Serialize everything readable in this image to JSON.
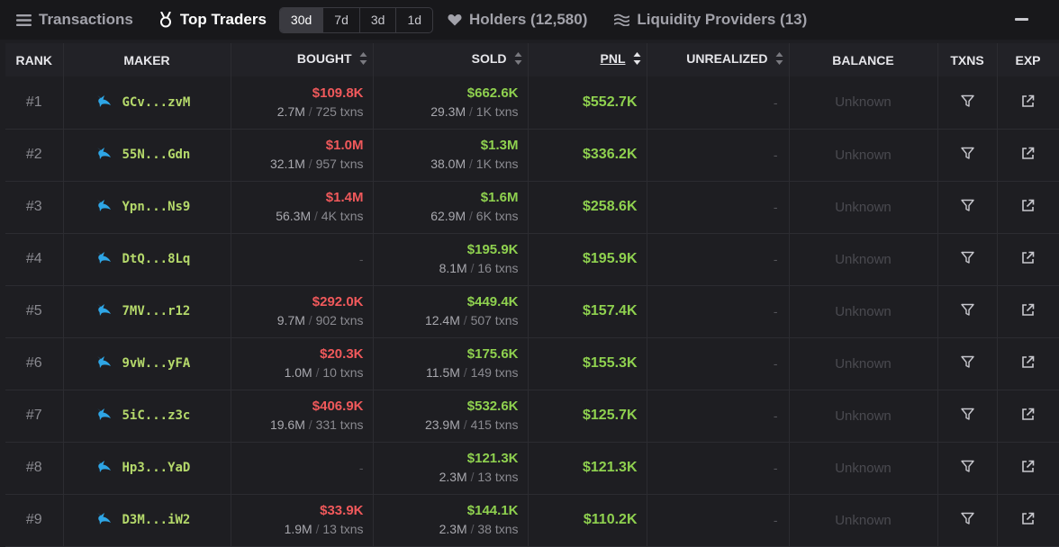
{
  "tabs": {
    "transactions": "Transactions",
    "top_traders": "Top Traders",
    "holders": "Holders (12,580)",
    "liquidity": "Liquidity Providers (13)"
  },
  "periods": [
    "30d",
    "7d",
    "3d",
    "1d"
  ],
  "active_period": "30d",
  "columns": {
    "rank": "RANK",
    "maker": "MAKER",
    "bought": "BOUGHT",
    "sold": "SOLD",
    "pnl": "PNL",
    "unrealized": "UNREALIZED",
    "balance": "BALANCE",
    "txns": "TXNS",
    "exp": "EXP"
  },
  "separator": "/",
  "rows": [
    {
      "rank": "#1",
      "maker": "GCv...zvM",
      "bought_usd": "$109.8K",
      "bought_amt": "2.7M",
      "bought_txns": "725 txns",
      "sold_usd": "$662.6K",
      "sold_amt": "29.3M",
      "sold_txns": "1K txns",
      "pnl": "$552.7K",
      "unrealized": "-",
      "balance": "Unknown"
    },
    {
      "rank": "#2",
      "maker": "55N...Gdn",
      "bought_usd": "$1.0M",
      "bought_amt": "32.1M",
      "bought_txns": "957 txns",
      "sold_usd": "$1.3M",
      "sold_amt": "38.0M",
      "sold_txns": "1K txns",
      "pnl": "$336.2K",
      "unrealized": "-",
      "balance": "Unknown"
    },
    {
      "rank": "#3",
      "maker": "Ypn...Ns9",
      "bought_usd": "$1.4M",
      "bought_amt": "56.3M",
      "bought_txns": "4K txns",
      "sold_usd": "$1.6M",
      "sold_amt": "62.9M",
      "sold_txns": "6K txns",
      "pnl": "$258.6K",
      "unrealized": "-",
      "balance": "Unknown"
    },
    {
      "rank": "#4",
      "maker": "DtQ...8Lq",
      "bought_usd": "",
      "bought_amt": "",
      "bought_txns": "",
      "bought_dash": "-",
      "sold_usd": "$195.9K",
      "sold_amt": "8.1M",
      "sold_txns": "16 txns",
      "pnl": "$195.9K",
      "unrealized": "-",
      "balance": "Unknown"
    },
    {
      "rank": "#5",
      "maker": "7MV...r12",
      "bought_usd": "$292.0K",
      "bought_amt": "9.7M",
      "bought_txns": "902 txns",
      "sold_usd": "$449.4K",
      "sold_amt": "12.4M",
      "sold_txns": "507 txns",
      "pnl": "$157.4K",
      "unrealized": "-",
      "balance": "Unknown"
    },
    {
      "rank": "#6",
      "maker": "9vW...yFA",
      "bought_usd": "$20.3K",
      "bought_amt": "1.0M",
      "bought_txns": "10 txns",
      "sold_usd": "$175.6K",
      "sold_amt": "11.5M",
      "sold_txns": "149 txns",
      "pnl": "$155.3K",
      "unrealized": "-",
      "balance": "Unknown"
    },
    {
      "rank": "#7",
      "maker": "5iC...z3c",
      "bought_usd": "$406.9K",
      "bought_amt": "19.6M",
      "bought_txns": "331 txns",
      "sold_usd": "$532.6K",
      "sold_amt": "23.9M",
      "sold_txns": "415 txns",
      "pnl": "$125.7K",
      "unrealized": "-",
      "balance": "Unknown"
    },
    {
      "rank": "#8",
      "maker": "Hp3...YaD",
      "bought_usd": "",
      "bought_amt": "",
      "bought_txns": "",
      "bought_dash": "-",
      "sold_usd": "$121.3K",
      "sold_amt": "2.3M",
      "sold_txns": "13 txns",
      "pnl": "$121.3K",
      "unrealized": "-",
      "balance": "Unknown"
    },
    {
      "rank": "#9",
      "maker": "D3M...iW2",
      "bought_usd": "$33.9K",
      "bought_amt": "1.9M",
      "bought_txns": "13 txns",
      "sold_usd": "$144.1K",
      "sold_amt": "2.3M",
      "sold_txns": "38 txns",
      "pnl": "$110.2K",
      "unrealized": "-",
      "balance": "Unknown"
    }
  ],
  "colors": {
    "bought": "#f0595b",
    "sold": "#8fd14f",
    "maker": "#b5d96b",
    "whale_icon": "#2ea6e6"
  },
  "icons": {
    "transactions": "list-icon",
    "top_traders": "medal-icon",
    "holders": "heart-icon",
    "liquidity": "waves-icon",
    "maker": "whale-icon",
    "txns": "filter-icon",
    "exp": "external-link-icon"
  }
}
